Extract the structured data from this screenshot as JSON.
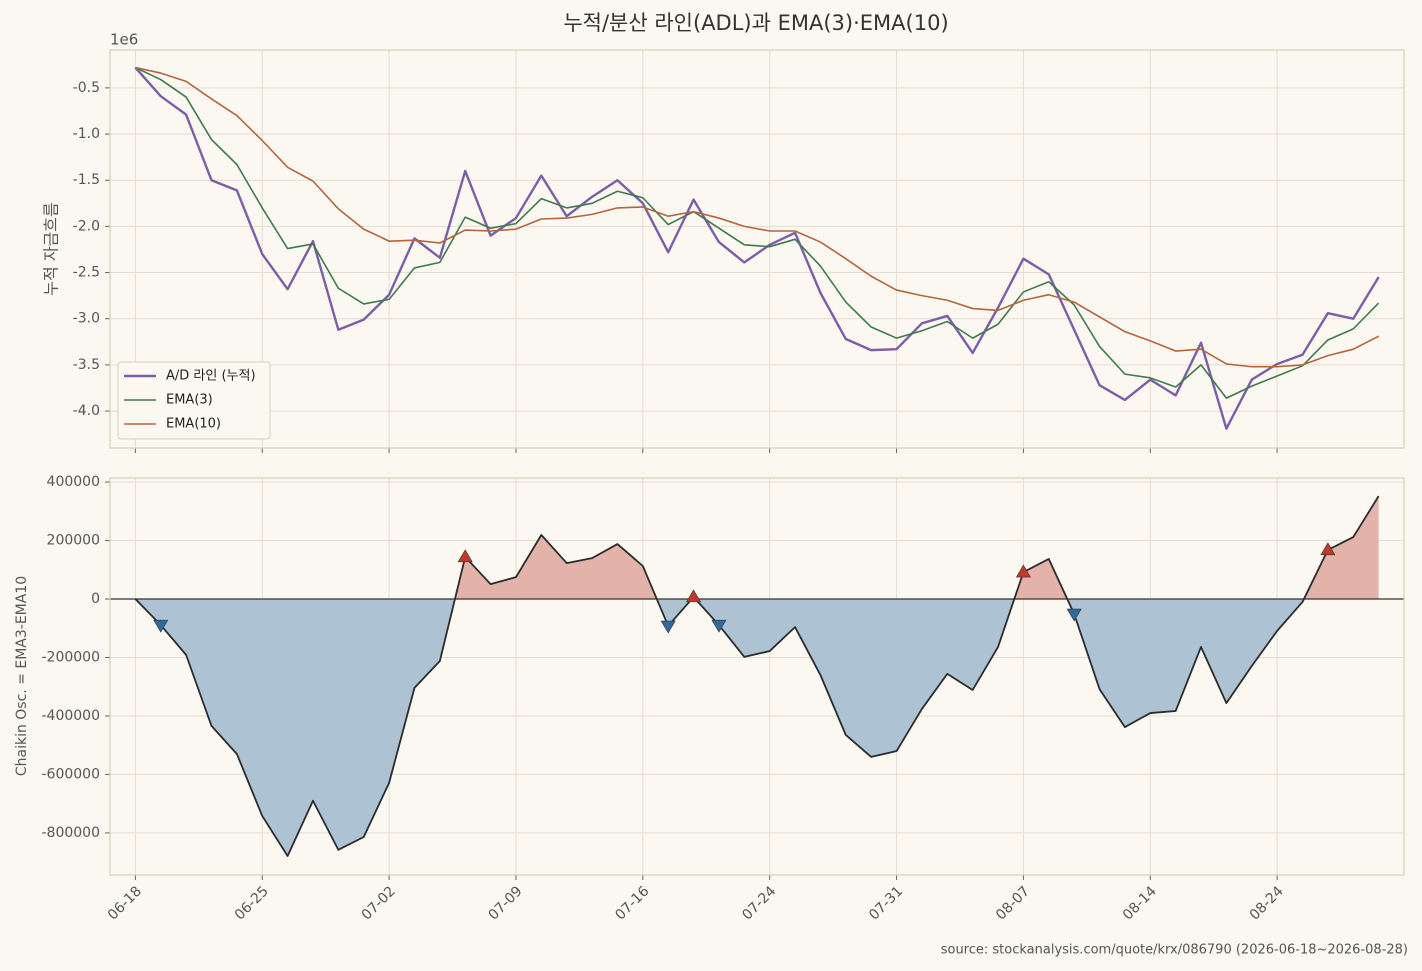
{
  "chart_data": [
    {
      "type": "line",
      "title": "누적/분산 라인(ADL)과 EMA(3)·EMA(10)",
      "offset_label": "1e6",
      "y_label": "누적 자금흐름",
      "categories": [
        "06-18",
        null,
        null,
        null,
        null,
        "06-25",
        null,
        null,
        null,
        null,
        "07-02",
        null,
        null,
        null,
        null,
        "07-09",
        null,
        null,
        null,
        null,
        "07-16",
        null,
        null,
        null,
        null,
        "07-24",
        null,
        null,
        null,
        null,
        "07-31",
        null,
        null,
        null,
        null,
        "08-07",
        null,
        null,
        null,
        null,
        "08-14",
        null,
        null,
        null,
        null,
        "08-24",
        null,
        null,
        null,
        null
      ],
      "ylim": [
        -4.4,
        -0.09
      ],
      "yticks": [
        -0.5,
        {
          "value": -1,
          "label": "-1.0"
        },
        -1.5,
        {
          "value": -2,
          "label": "-2.0"
        },
        -2.5,
        {
          "value": -3,
          "label": "-3.0"
        },
        -3.5,
        {
          "value": -4,
          "label": "-4.0"
        }
      ],
      "grid": true,
      "legend": "lower left",
      "series": [
        {
          "name": "A/D 라인 (누적)",
          "color": "#7b5ea7",
          "width": 2.4,
          "values": [
            -0.28,
            -0.59,
            -0.79,
            -1.5,
            -1.61,
            -2.3,
            -2.68,
            -2.16,
            -3.12,
            -3.01,
            -2.74,
            -2.13,
            -2.34,
            -1.4,
            -2.1,
            -1.91,
            -1.45,
            -1.89,
            -1.68,
            -1.5,
            -1.75,
            -2.28,
            -1.71,
            -2.17,
            -2.39,
            -2.2,
            -2.07,
            -2.72,
            -3.22,
            -3.34,
            -3.33,
            -3.05,
            -2.97,
            -3.37,
            -2.88,
            -2.35,
            -2.52,
            -3.12,
            -3.72,
            -3.88,
            -3.66,
            -3.83,
            -3.26,
            -4.19,
            -3.66,
            -3.49,
            -3.39,
            -2.94,
            -3.0,
            -2.55
          ]
        },
        {
          "name": "EMA(3)",
          "color": "#3f7a4c",
          "width": 1.6,
          "values": [
            -0.28,
            -0.41,
            -0.6,
            -1.06,
            -1.33,
            -1.8,
            -2.24,
            -2.19,
            -2.67,
            -2.84,
            -2.79,
            -2.45,
            -2.39,
            -1.9,
            -2.02,
            -1.97,
            -1.7,
            -1.8,
            -1.75,
            -1.62,
            -1.69,
            -1.98,
            -1.84,
            -2.02,
            -2.2,
            -2.22,
            -2.14,
            -2.43,
            -2.82,
            -3.09,
            -3.21,
            -3.13,
            -3.03,
            -3.21,
            -3.06,
            -2.71,
            -2.6,
            -2.85,
            -3.3,
            -3.6,
            -3.64,
            -3.74,
            -3.5,
            -3.86,
            -3.73,
            -3.62,
            -3.51,
            -3.23,
            -3.11,
            -2.83
          ]
        },
        {
          "name": "EMA(10)",
          "color": "#b5653c",
          "width": 1.6,
          "values": [
            -0.28,
            -0.34,
            -0.43,
            -0.62,
            -0.8,
            -1.07,
            -1.36,
            -1.51,
            -1.81,
            -2.03,
            -2.16,
            -2.15,
            -2.18,
            -2.04,
            -2.05,
            -2.03,
            -1.92,
            -1.91,
            -1.87,
            -1.8,
            -1.79,
            -1.89,
            -1.84,
            -1.91,
            -2.0,
            -2.05,
            -2.05,
            -2.17,
            -2.35,
            -2.54,
            -2.69,
            -2.75,
            -2.8,
            -2.89,
            -2.91,
            -2.8,
            -2.74,
            -2.82,
            -2.98,
            -3.14,
            -3.24,
            -3.35,
            -3.33,
            -3.49,
            -3.52,
            -3.52,
            -3.5,
            -3.4,
            -3.33,
            -3.19
          ]
        }
      ]
    },
    {
      "type": "area",
      "y_label": "Chaikin Osc. = EMA3-EMA10",
      "source": "source: stockanalysis.com/quote/krx/086790 (2026-06-18~2026-08-28)",
      "ylim": [
        -944000,
        414000
      ],
      "yticks": [
        400000,
        200000,
        0,
        -200000,
        -400000,
        -600000,
        -800000
      ],
      "grid": true,
      "line_color": "#2b2b2b",
      "positive_color": "#e3b2a8",
      "negative_color": "#adc3d3",
      "values": [
        0,
        -89000,
        -191000,
        -434000,
        -530000,
        -742000,
        -879000,
        -690000,
        -858000,
        -814000,
        -629000,
        -304000,
        -212000,
        144000,
        51000,
        75000,
        219000,
        123000,
        140000,
        188000,
        113000,
        -92000,
        7000,
        -89000,
        -198000,
        -178000,
        -96000,
        -260000,
        -465000,
        -540000,
        -520000,
        -376000,
        -256000,
        -311000,
        -164000,
        92000,
        137000,
        -51000,
        -308000,
        -438000,
        -390000,
        -383000,
        -164000,
        -356000,
        -229000,
        -109000,
        -10000,
        168000,
        212000,
        352000
      ],
      "cross_up": {
        "color": "#c0392b",
        "indices": [
          13,
          22,
          35,
          47
        ]
      },
      "cross_down": {
        "color": "#2e6a9b",
        "indices": [
          1,
          21,
          23,
          37
        ]
      }
    }
  ]
}
